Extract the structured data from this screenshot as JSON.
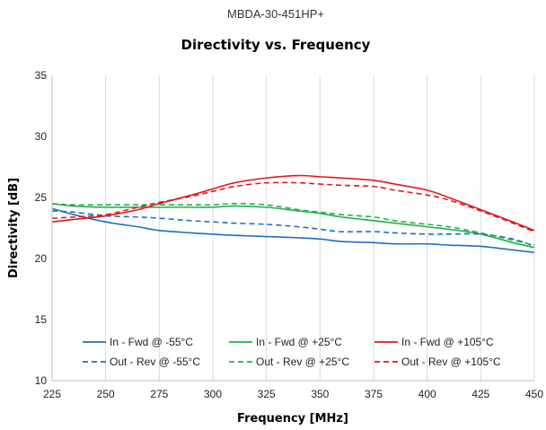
{
  "chart_data": {
    "type": "line",
    "top_label": "MBDA-30-451HP+",
    "title": "Directivity vs. Frequency",
    "xlabel": "Frequency [MHz]",
    "ylabel": "Directivity [dB]",
    "xlim": [
      225,
      450
    ],
    "ylim": [
      10,
      35
    ],
    "xticks": [
      225,
      250,
      275,
      300,
      325,
      350,
      375,
      400,
      425,
      450
    ],
    "yticks": [
      10,
      15,
      20,
      25,
      30,
      35
    ],
    "grid": "vertical",
    "legend_position": "bottom-inside",
    "x": [
      225,
      235,
      250,
      265,
      275,
      290,
      300,
      310,
      325,
      340,
      350,
      360,
      375,
      385,
      400,
      410,
      425,
      440,
      450
    ],
    "series": [
      {
        "name": "In - Fwd @ -55°C",
        "color": "#1f6fbf",
        "dash": "solid",
        "values": [
          24.1,
          23.6,
          23.0,
          22.6,
          22.3,
          22.1,
          22.0,
          21.9,
          21.8,
          21.7,
          21.6,
          21.4,
          21.3,
          21.2,
          21.2,
          21.1,
          21.0,
          20.7,
          20.5
        ]
      },
      {
        "name": "In - Fwd @ +25°C",
        "color": "#22b04a",
        "dash": "solid",
        "values": [
          24.5,
          24.3,
          24.2,
          24.2,
          24.2,
          24.2,
          24.2,
          24.3,
          24.2,
          23.9,
          23.7,
          23.4,
          23.1,
          22.9,
          22.6,
          22.4,
          22.0,
          21.3,
          20.9
        ]
      },
      {
        "name": "In - Fwd @ +105°C",
        "color": "#e0181b",
        "dash": "solid",
        "values": [
          23.0,
          23.2,
          23.5,
          24.0,
          24.5,
          25.2,
          25.7,
          26.2,
          26.6,
          26.8,
          26.7,
          26.6,
          26.4,
          26.1,
          25.6,
          25.0,
          24.0,
          23.0,
          22.3
        ]
      },
      {
        "name": "Out - Rev @ -55°C",
        "color": "#1f6fbf",
        "dash": "dashed",
        "values": [
          23.9,
          23.8,
          23.5,
          23.4,
          23.3,
          23.1,
          23.0,
          22.9,
          22.8,
          22.6,
          22.4,
          22.2,
          22.2,
          22.1,
          22.0,
          22.0,
          22.0,
          21.6,
          21.0
        ]
      },
      {
        "name": "Out - Rev @ +25°C",
        "color": "#22b04a",
        "dash": "dashed",
        "values": [
          24.5,
          24.4,
          24.4,
          24.4,
          24.4,
          24.4,
          24.4,
          24.5,
          24.4,
          24.0,
          23.8,
          23.6,
          23.4,
          23.1,
          22.8,
          22.6,
          22.1,
          21.5,
          21.1
        ]
      },
      {
        "name": "Out - Rev @ +105°C",
        "color": "#e0181b",
        "dash": "dashed",
        "values": [
          23.3,
          23.4,
          23.6,
          24.2,
          24.6,
          25.1,
          25.5,
          25.9,
          26.2,
          26.2,
          26.1,
          26.0,
          25.9,
          25.6,
          25.2,
          24.8,
          23.9,
          22.9,
          22.2
        ]
      }
    ]
  }
}
